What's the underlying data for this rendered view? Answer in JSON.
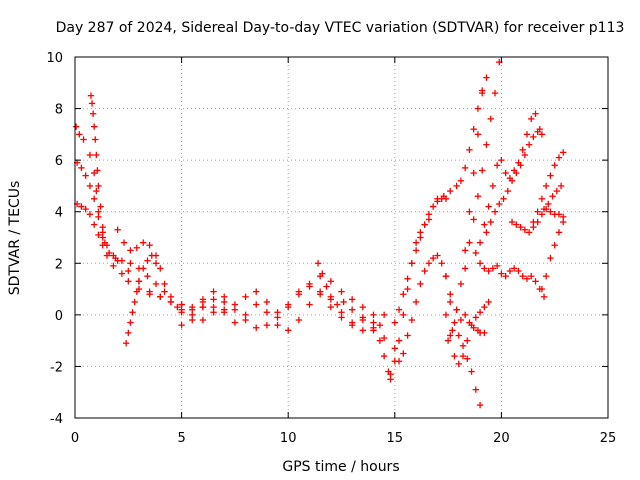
{
  "chart_data": {
    "type": "scatter",
    "title": "Day 287 of 2024, Sidereal Day-to-day VTEC variation (SDTVAR) for receiver p113",
    "xlabel": "GPS time / hours",
    "ylabel": "SDTVAR / TECUs",
    "xlim": [
      0,
      25
    ],
    "ylim": [
      -4,
      10
    ],
    "xticks": [
      "0",
      "5",
      "10",
      "15",
      "20",
      "25"
    ],
    "yticks": [
      "-4",
      "-2",
      "0",
      "2",
      "4",
      "6",
      "8",
      "10"
    ],
    "grid": true,
    "marker": "plus",
    "color": "#ff0000",
    "series": [
      {
        "x": [
          0.05,
          0.2,
          0.4,
          0.7,
          0.9,
          1.0,
          1.1,
          1.3,
          1.5,
          1.8,
          2.2,
          2.5,
          3.0,
          3.5,
          4.0,
          4.5,
          5.0
        ],
        "y": [
          7.3,
          7.0,
          6.8,
          6.2,
          5.5,
          4.8,
          4.0,
          3.0,
          2.3,
          1.9,
          1.6,
          1.3,
          1.0,
          0.8,
          0.7,
          0.5,
          0.4
        ]
      },
      {
        "x": [
          0.1,
          0.3,
          0.5,
          0.7,
          0.9,
          1.1,
          1.3,
          1.5,
          1.8,
          2.0,
          2.5,
          3.0,
          3.5,
          4.0,
          4.5,
          5.0,
          5.5,
          6.0
        ],
        "y": [
          5.9,
          5.7,
          5.4,
          5.0,
          4.5,
          3.8,
          3.2,
          2.7,
          2.3,
          2.1,
          1.7,
          1.3,
          0.9,
          0.7,
          0.5,
          0.4,
          0.3,
          0.3
        ]
      },
      {
        "x": [
          0.1,
          0.3,
          0.5,
          0.7,
          0.9,
          1.1,
          1.3,
          1.6,
          1.9,
          2.2,
          2.6,
          3.0,
          3.4,
          3.8,
          4.2
        ],
        "y": [
          4.3,
          4.2,
          4.1,
          3.9,
          3.5,
          3.1,
          2.7,
          2.4,
          2.2,
          2.1,
          2.0,
          1.8,
          1.5,
          1.2,
          0.9
        ]
      },
      {
        "x": [
          0.75,
          0.8,
          0.85,
          0.9,
          0.95,
          1.0,
          1.05,
          1.1,
          1.2,
          1.3,
          1.4
        ],
        "y": [
          8.5,
          8.2,
          7.8,
          7.3,
          6.8,
          6.2,
          5.6,
          5.0,
          4.2,
          3.4,
          2.8
        ]
      },
      {
        "x": [
          2.4,
          2.5,
          2.6,
          2.7,
          2.8,
          2.9,
          3.0,
          3.2,
          3.4,
          3.6,
          3.8
        ],
        "y": [
          -1.1,
          -0.7,
          -0.3,
          0.1,
          0.5,
          0.9,
          1.3,
          1.8,
          2.1,
          2.3,
          2.0
        ]
      },
      {
        "x": [
          2.0,
          2.3,
          2.6,
          2.9,
          3.2,
          3.5,
          3.8,
          4.0,
          4.2,
          4.5,
          4.8,
          5.0,
          5.5,
          6.0,
          6.5,
          7.0
        ],
        "y": [
          3.3,
          2.8,
          2.5,
          2.6,
          2.8,
          2.7,
          2.3,
          1.8,
          1.2,
          0.7,
          0.3,
          0.1,
          0.2,
          0.5,
          0.3,
          0.1
        ]
      },
      {
        "x": [
          5.0,
          5.5,
          6.0,
          6.5,
          7.0,
          7.5,
          8.0,
          8.5,
          9.0,
          9.5,
          10.0,
          10.5,
          11.0,
          11.5,
          12.0,
          12.5,
          13.0,
          13.5,
          14.0,
          14.3
        ],
        "y": [
          0.2,
          0.0,
          -0.2,
          0.1,
          0.5,
          0.2,
          -0.2,
          -0.5,
          -0.4,
          -0.1,
          0.3,
          0.8,
          1.2,
          1.5,
          1.3,
          0.9,
          0.6,
          0.3,
          0.0,
          -0.4
        ]
      },
      {
        "x": [
          5.0,
          5.5,
          6.0,
          6.5,
          7.0,
          7.5,
          8.0,
          8.5,
          9.0,
          9.5,
          10.0,
          10.5,
          11.0,
          11.5,
          12.0,
          12.5,
          13.0,
          13.5,
          14.0,
          14.5
        ],
        "y": [
          -0.4,
          -0.2,
          0.3,
          0.6,
          0.2,
          -0.3,
          0.0,
          0.4,
          0.1,
          -0.4,
          -0.6,
          -0.2,
          0.4,
          0.9,
          0.6,
          0.1,
          -0.4,
          -0.6,
          -0.3,
          0.0
        ]
      },
      {
        "x": [
          6.0,
          6.5,
          7.0,
          7.5,
          8.0,
          8.5,
          9.0,
          9.5,
          10.0,
          10.5,
          11.0,
          11.5,
          12.0,
          12.5,
          13.0,
          13.5,
          14.0,
          14.5,
          15.0
        ],
        "y": [
          0.6,
          0.9,
          0.7,
          0.4,
          0.7,
          0.9,
          0.5,
          0.1,
          0.4,
          0.9,
          1.1,
          0.8,
          0.3,
          -0.1,
          -0.3,
          -0.1,
          -0.5,
          -0.9,
          -1.3
        ]
      },
      {
        "x": [
          11.4,
          11.6,
          11.8,
          12.0,
          12.3,
          12.6,
          13.0,
          13.5,
          14.0,
          14.3,
          14.5,
          14.7,
          14.8
        ],
        "y": [
          2.0,
          1.6,
          1.1,
          0.7,
          0.4,
          0.5,
          0.2,
          -0.2,
          -0.6,
          -1.0,
          -1.6,
          -2.2,
          -2.5
        ]
      },
      {
        "x": [
          14.8,
          15.0,
          15.2,
          15.4,
          15.6,
          15.8,
          16.0,
          16.2,
          16.4,
          16.6
        ],
        "y": [
          -2.3,
          -1.8,
          -1.0,
          0.0,
          1.0,
          2.0,
          2.8,
          3.2,
          3.5,
          3.7
        ]
      },
      {
        "x": [
          15.0,
          15.2,
          15.4,
          15.6,
          15.8,
          16.0,
          16.2,
          16.4,
          16.6,
          16.8,
          17.0,
          17.2,
          17.4
        ],
        "y": [
          -0.3,
          0.2,
          0.8,
          1.4,
          2.0,
          2.5,
          3.0,
          3.5,
          3.9,
          4.2,
          4.4,
          4.5,
          4.5
        ]
      },
      {
        "x": [
          15.2,
          15.4,
          15.6,
          15.8,
          16.0,
          16.2,
          16.4,
          16.6,
          16.8,
          17.0,
          17.2,
          17.4,
          17.6
        ],
        "y": [
          -1.8,
          -1.5,
          -0.8,
          -0.2,
          0.5,
          1.2,
          1.7,
          2.0,
          2.2,
          2.3,
          2.0,
          1.5,
          0.8
        ]
      },
      {
        "x": [
          17.4,
          17.6,
          17.8,
          18.0,
          18.2,
          18.4,
          18.6,
          18.8,
          19.0,
          19.2,
          19.4
        ],
        "y": [
          0.0,
          -0.8,
          -1.6,
          -1.9,
          -1.6,
          -1.0,
          -0.4,
          -0.1,
          0.1,
          0.3,
          0.5
        ]
      },
      {
        "x": [
          17.4,
          17.6,
          17.8,
          18.0,
          18.2,
          18.4,
          18.6,
          18.8,
          19.0
        ],
        "y": [
          1.5,
          0.5,
          -0.3,
          -0.8,
          -1.2,
          -1.7,
          -2.2,
          -2.9,
          -3.5
        ]
      },
      {
        "x": [
          17.5,
          17.7,
          17.9,
          18.1,
          18.3,
          18.5,
          18.7,
          18.9,
          19.1
        ],
        "y": [
          -1.0,
          -0.6,
          0.2,
          1.2,
          2.5,
          4.0,
          5.5,
          7.0,
          8.6
        ]
      },
      {
        "x": [
          17.0,
          17.3,
          17.6,
          17.9,
          18.1,
          18.3,
          18.5,
          18.7,
          18.9,
          19.1,
          19.3
        ],
        "y": [
          4.5,
          4.6,
          4.8,
          5.0,
          5.2,
          5.7,
          6.4,
          7.2,
          8.0,
          8.7,
          9.2
        ]
      },
      {
        "x": [
          18.3,
          18.5,
          18.7,
          18.9,
          19.1,
          19.3,
          19.5,
          19.7,
          19.9
        ],
        "y": [
          1.8,
          2.8,
          3.7,
          4.6,
          5.6,
          6.6,
          7.6,
          8.6,
          9.8
        ]
      },
      {
        "x": [
          17.9,
          18.1,
          18.3,
          18.5,
          18.7,
          18.9,
          19.0,
          19.2
        ],
        "y": [
          0.2,
          -0.2,
          0.0,
          -0.3,
          -0.5,
          -0.6,
          -0.7,
          -0.7
        ]
      },
      {
        "x": [
          18.8,
          19.0,
          19.2,
          19.4,
          19.6,
          19.8,
          20.0,
          20.2,
          20.4,
          20.6,
          20.8,
          21.0,
          21.2,
          21.4,
          21.6,
          21.8
        ],
        "y": [
          2.4,
          2.8,
          3.5,
          4.2,
          5.0,
          5.8,
          6.0,
          5.5,
          5.3,
          5.6,
          5.9,
          6.4,
          7.0,
          7.6,
          7.8,
          7.2
        ]
      },
      {
        "x": [
          19.0,
          19.2,
          19.4,
          19.6,
          19.8,
          20.0,
          20.2,
          20.4,
          20.6,
          20.8,
          21.0,
          21.2,
          21.4,
          21.6,
          21.8,
          22.0
        ],
        "y": [
          2.0,
          1.8,
          1.7,
          1.8,
          1.9,
          1.6,
          1.5,
          1.7,
          1.8,
          1.7,
          1.5,
          1.4,
          1.5,
          1.3,
          1.0,
          0.7
        ]
      },
      {
        "x": [
          19.3,
          19.5,
          19.7,
          19.9,
          20.1,
          20.3,
          20.5,
          20.7,
          20.9,
          21.1,
          21.3,
          21.5,
          21.7,
          21.9
        ],
        "y": [
          3.2,
          3.6,
          4.0,
          4.3,
          4.5,
          4.8,
          5.2,
          5.5,
          5.8,
          6.2,
          6.6,
          6.9,
          7.1,
          7.0
        ]
      },
      {
        "x": [
          20.5,
          20.7,
          20.9,
          21.1,
          21.3,
          21.5,
          21.7,
          21.9,
          22.1,
          22.3,
          22.5,
          22.7,
          22.9
        ],
        "y": [
          3.6,
          3.5,
          3.4,
          3.3,
          3.2,
          3.4,
          3.6,
          3.9,
          4.1,
          4.0,
          3.9,
          3.9,
          3.8
        ]
      },
      {
        "x": [
          21.9,
          22.1,
          22.3,
          22.5,
          22.7,
          22.9
        ],
        "y": [
          1.0,
          1.5,
          2.2,
          2.7,
          3.2,
          3.6
        ]
      },
      {
        "x": [
          21.5,
          21.7,
          21.9,
          22.1,
          22.3,
          22.5,
          22.7,
          22.9
        ],
        "y": [
          3.6,
          4.0,
          4.5,
          5.0,
          5.4,
          5.8,
          6.1,
          6.3
        ]
      },
      {
        "x": [
          22.0,
          22.2,
          22.4,
          22.6,
          22.8
        ],
        "y": [
          4.1,
          4.3,
          4.6,
          4.8,
          5.0
        ]
      }
    ]
  }
}
